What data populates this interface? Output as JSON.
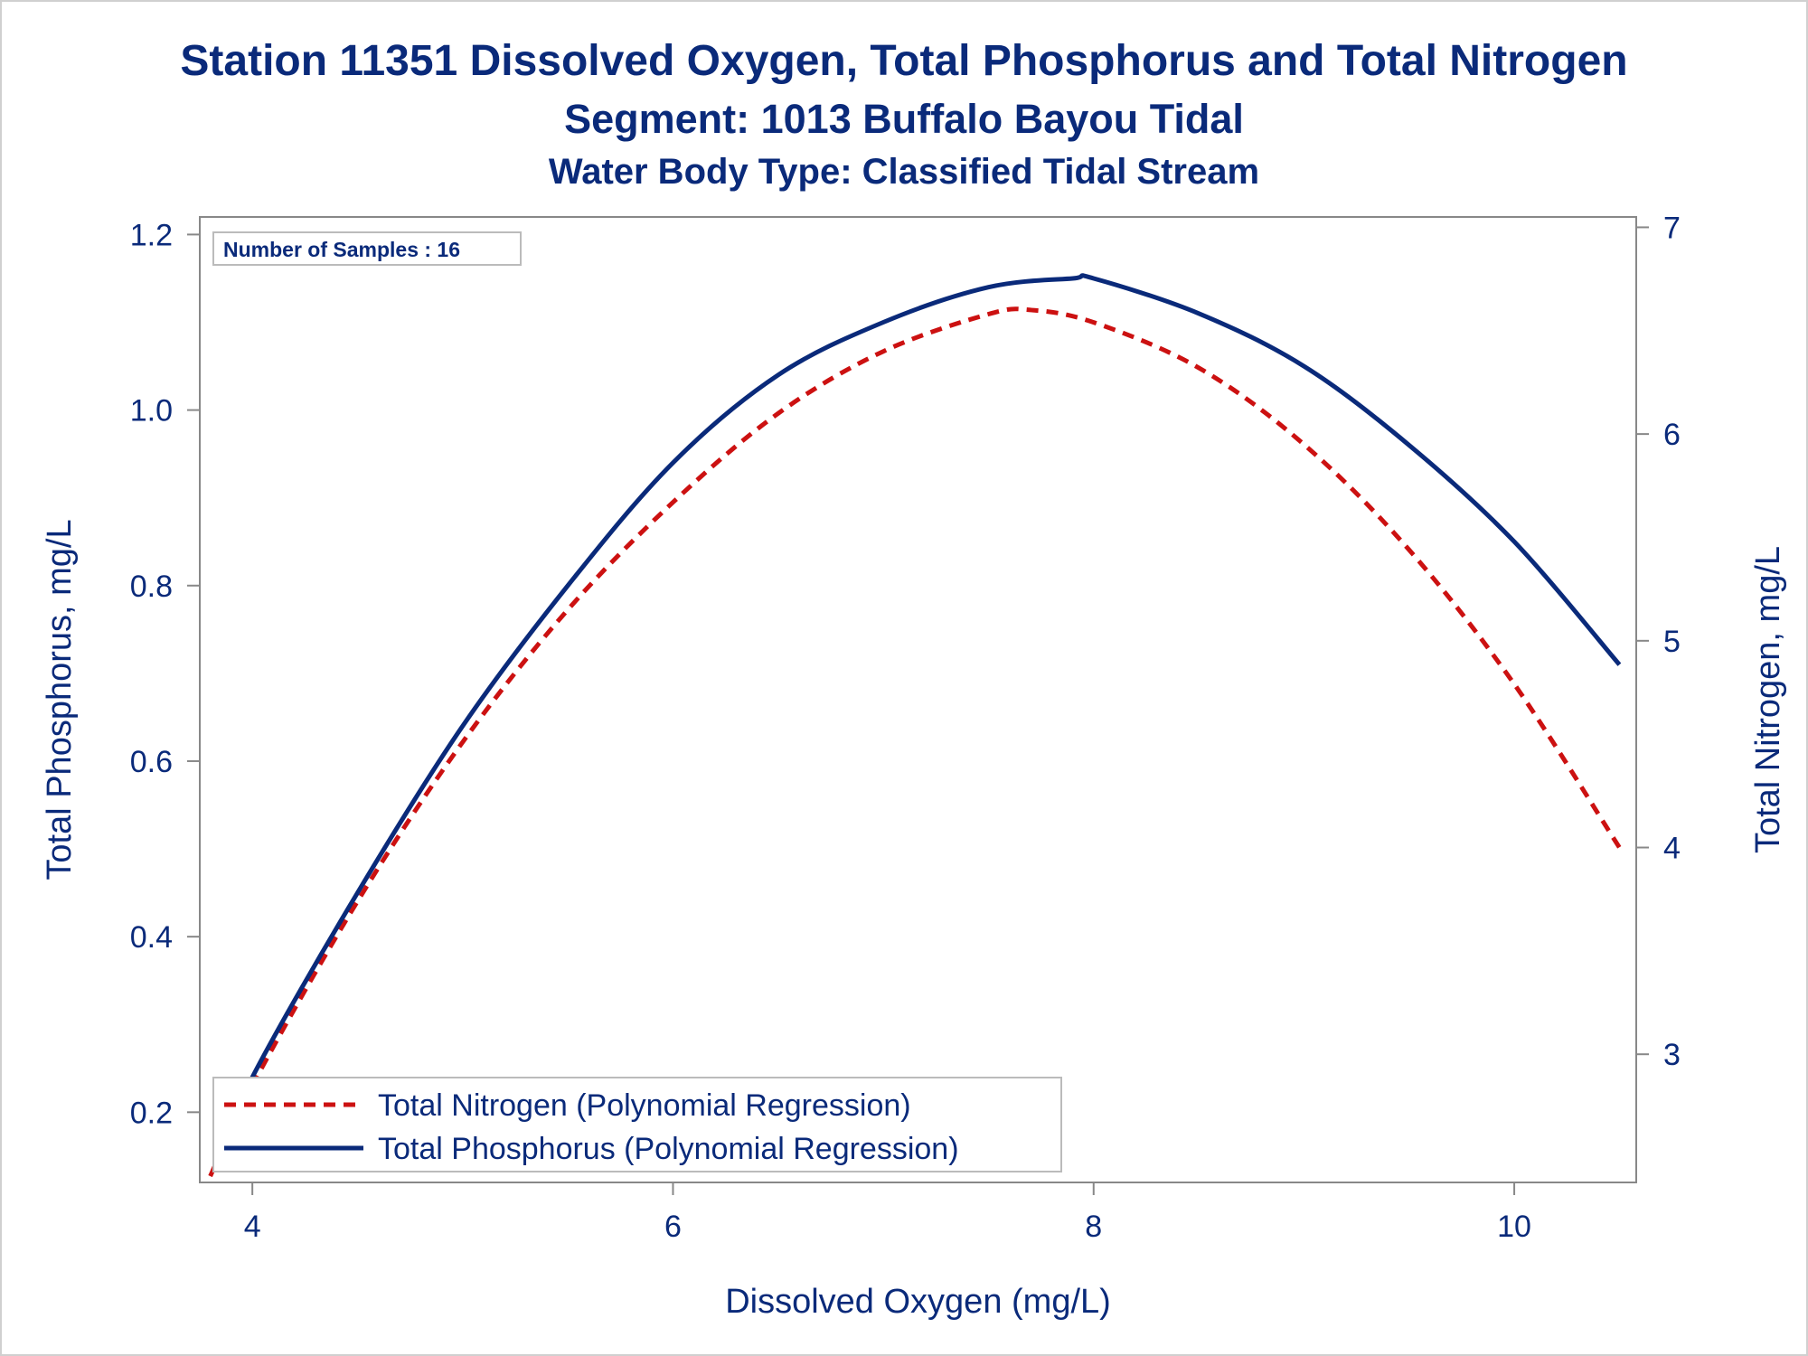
{
  "title": "Station 11351  Dissolved Oxygen, Total Phosphorus and Total Nitrogen",
  "subtitle1": "Segment: 1013  Buffalo Bayou Tidal",
  "subtitle2": "Water Body Type: Classified Tidal Stream",
  "colors": {
    "text": "#0a2a7a",
    "phosphorus": "#0a2a7a",
    "nitrogen": "#cc1111",
    "axis": "#888888",
    "frame": "#d0d0d0"
  },
  "annotation": "Number of Samples : 16",
  "legend_placement": "bottom-left",
  "chart_data": {
    "type": "line",
    "title": "Station 11351  Dissolved Oxygen, Total Phosphorus and Total Nitrogen",
    "xlabel": "Dissolved Oxygen (mg/L)",
    "ylabel": "Total Phosphorus, mg/L",
    "y2label": "Total Nitrogen, mg/L",
    "xlim": [
      3.75,
      10.58
    ],
    "ylim": [
      0.12,
      1.22
    ],
    "y2lim": [
      2.38,
      7.05
    ],
    "xticks": [
      4,
      6,
      8,
      10
    ],
    "yticks": [
      0.2,
      0.4,
      0.6,
      0.8,
      1.0
    ],
    "yticks_extra": [
      1.2
    ],
    "y2ticks": [
      3,
      4,
      5,
      6,
      7
    ],
    "ytick_labels": [
      "0.2",
      "0.4",
      "0.6",
      "0.8",
      "1.0",
      "1.2"
    ],
    "grid": false,
    "series": [
      {
        "name": "Total Nitrogen (Polynomial Regression)",
        "axis": "y2",
        "style": "dashed",
        "x": [
          3.8,
          4.0,
          4.5,
          5.0,
          5.5,
          6.0,
          6.5,
          7.0,
          7.5,
          7.7,
          8.0,
          8.5,
          9.0,
          9.5,
          10.0,
          10.5
        ],
        "y": [
          2.41,
          2.85,
          3.74,
          4.51,
          5.15,
          5.67,
          6.1,
          6.4,
          6.58,
          6.6,
          6.54,
          6.32,
          5.95,
          5.44,
          4.79,
          4.0
        ]
      },
      {
        "name": "Total Phosphorus (Polynomial Regression)",
        "axis": "y",
        "style": "solid",
        "x": [
          3.83,
          4.0,
          4.5,
          5.0,
          5.5,
          6.0,
          6.5,
          7.0,
          7.5,
          7.9,
          8.0,
          8.5,
          9.0,
          9.5,
          10.0,
          10.5
        ],
        "y": [
          0.14,
          0.24,
          0.45,
          0.64,
          0.8,
          0.94,
          1.04,
          1.1,
          1.14,
          1.15,
          1.15,
          1.11,
          1.05,
          0.96,
          0.85,
          0.71
        ]
      }
    ]
  }
}
